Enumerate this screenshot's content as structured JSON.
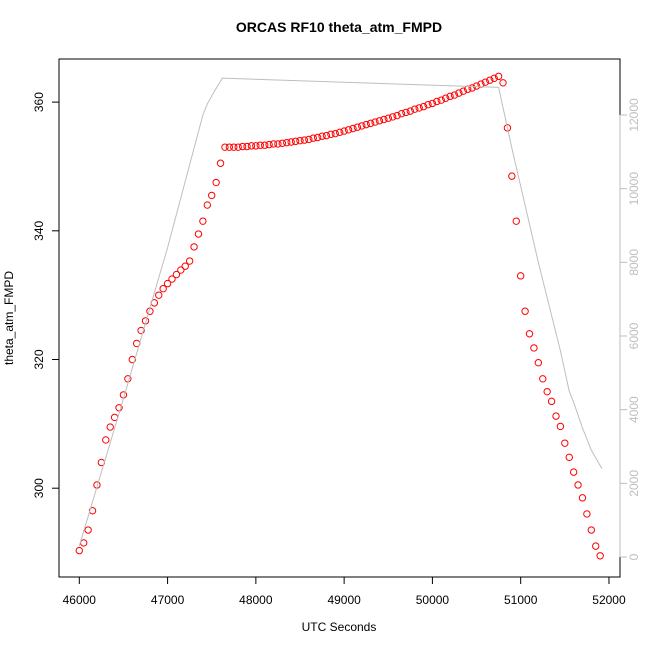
{
  "chart_data": {
    "type": "scatter",
    "title": "ORCAS RF10 theta_atm_FMPD",
    "x_label": "UTC Seconds",
    "y_label": "theta_atm_FMPD",
    "xlim": [
      45770,
      52125
    ],
    "ylim": [
      286.2,
      366.7
    ],
    "y2lim": [
      -543,
      13520
    ],
    "xticks": [
      46000,
      47000,
      48000,
      49000,
      50000,
      51000,
      52000
    ],
    "yticks": [
      300,
      320,
      340,
      360
    ],
    "y2ticks": [
      0,
      2000,
      4000,
      6000,
      8000,
      10000,
      12000
    ],
    "series": [
      {
        "type": "scatter",
        "color": "#ff0000",
        "x": [
          46000,
          46050,
          46100,
          46150,
          46200,
          46250,
          46300,
          46350,
          46400,
          46450,
          46500,
          46550,
          46600,
          46650,
          46700,
          46750,
          46800,
          46850,
          46900,
          46950,
          47000,
          47050,
          47100,
          47150,
          47200,
          47250,
          47300,
          47350,
          47400,
          47450,
          47500,
          47550,
          47600,
          47650,
          47700,
          47750,
          47800,
          47850,
          47900,
          47950,
          48000,
          48050,
          48100,
          48150,
          48200,
          48250,
          48300,
          48350,
          48400,
          48450,
          48500,
          48550,
          48600,
          48650,
          48700,
          48750,
          48800,
          48850,
          48900,
          48950,
          49000,
          49050,
          49100,
          49150,
          49200,
          49250,
          49300,
          49350,
          49400,
          49450,
          49500,
          49550,
          49600,
          49650,
          49700,
          49750,
          49800,
          49850,
          49900,
          49950,
          50000,
          50050,
          50100,
          50150,
          50200,
          50250,
          50300,
          50350,
          50400,
          50450,
          50500,
          50550,
          50600,
          50650,
          50700,
          50750,
          50800,
          50850,
          50900,
          50950,
          51000,
          51050,
          51100,
          51150,
          51200,
          51250,
          51300,
          51350,
          51400,
          51450,
          51500,
          51550,
          51600,
          51650,
          51700,
          51750,
          51800,
          51850,
          51900
        ],
        "values": [
          290.3,
          291.5,
          293.5,
          296.5,
          300.5,
          304,
          307.5,
          309.5,
          311,
          312.5,
          314.5,
          317,
          320,
          322.5,
          324.5,
          326,
          327.5,
          328.8,
          330,
          331,
          331.8,
          332.5,
          333.2,
          333.9,
          334.5,
          335.3,
          337.5,
          339.5,
          341.5,
          344,
          345.5,
          347.5,
          350.5,
          353,
          353.0,
          353.0,
          353.0,
          353.1,
          353.1,
          353.2,
          353.2,
          353.3,
          353.3,
          353.4,
          353.5,
          353.5,
          353.6,
          353.7,
          353.8,
          353.9,
          354.0,
          354.1,
          354.2,
          354.4,
          354.5,
          354.7,
          354.8,
          355.0,
          355.1,
          355.3,
          355.5,
          355.7,
          355.9,
          356.1,
          356.3,
          356.5,
          356.7,
          356.9,
          357.1,
          357.3,
          357.5,
          357.7,
          357.9,
          358.2,
          358.4,
          358.6,
          358.9,
          359.1,
          359.3,
          359.6,
          359.8,
          360.1,
          360.3,
          360.6,
          360.9,
          361.1,
          361.4,
          361.7,
          362.0,
          362.2,
          362.5,
          362.8,
          363.1,
          363.4,
          363.7,
          364.0,
          363,
          356,
          348.5,
          341.5,
          333,
          327.5,
          324,
          321.8,
          319.5,
          317,
          315,
          313.5,
          311.2,
          309.6,
          307,
          304.8,
          302.5,
          300.5,
          298.5,
          296,
          293.5,
          291,
          289.5
        ]
      },
      {
        "type": "line",
        "color": "#bebebe",
        "axis": "y2",
        "x": [
          46000,
          46500,
          47000,
          47400,
          47450,
          47520,
          47620,
          50750,
          50900,
          51200,
          51450,
          51550,
          51600,
          51700,
          51800,
          51920
        ],
        "values": [
          300,
          4300,
          8400,
          12000,
          12300,
          12600,
          13000,
          12750,
          11100,
          8000,
          5600,
          4500,
          4200,
          3500,
          2900,
          2400
        ]
      }
    ]
  }
}
